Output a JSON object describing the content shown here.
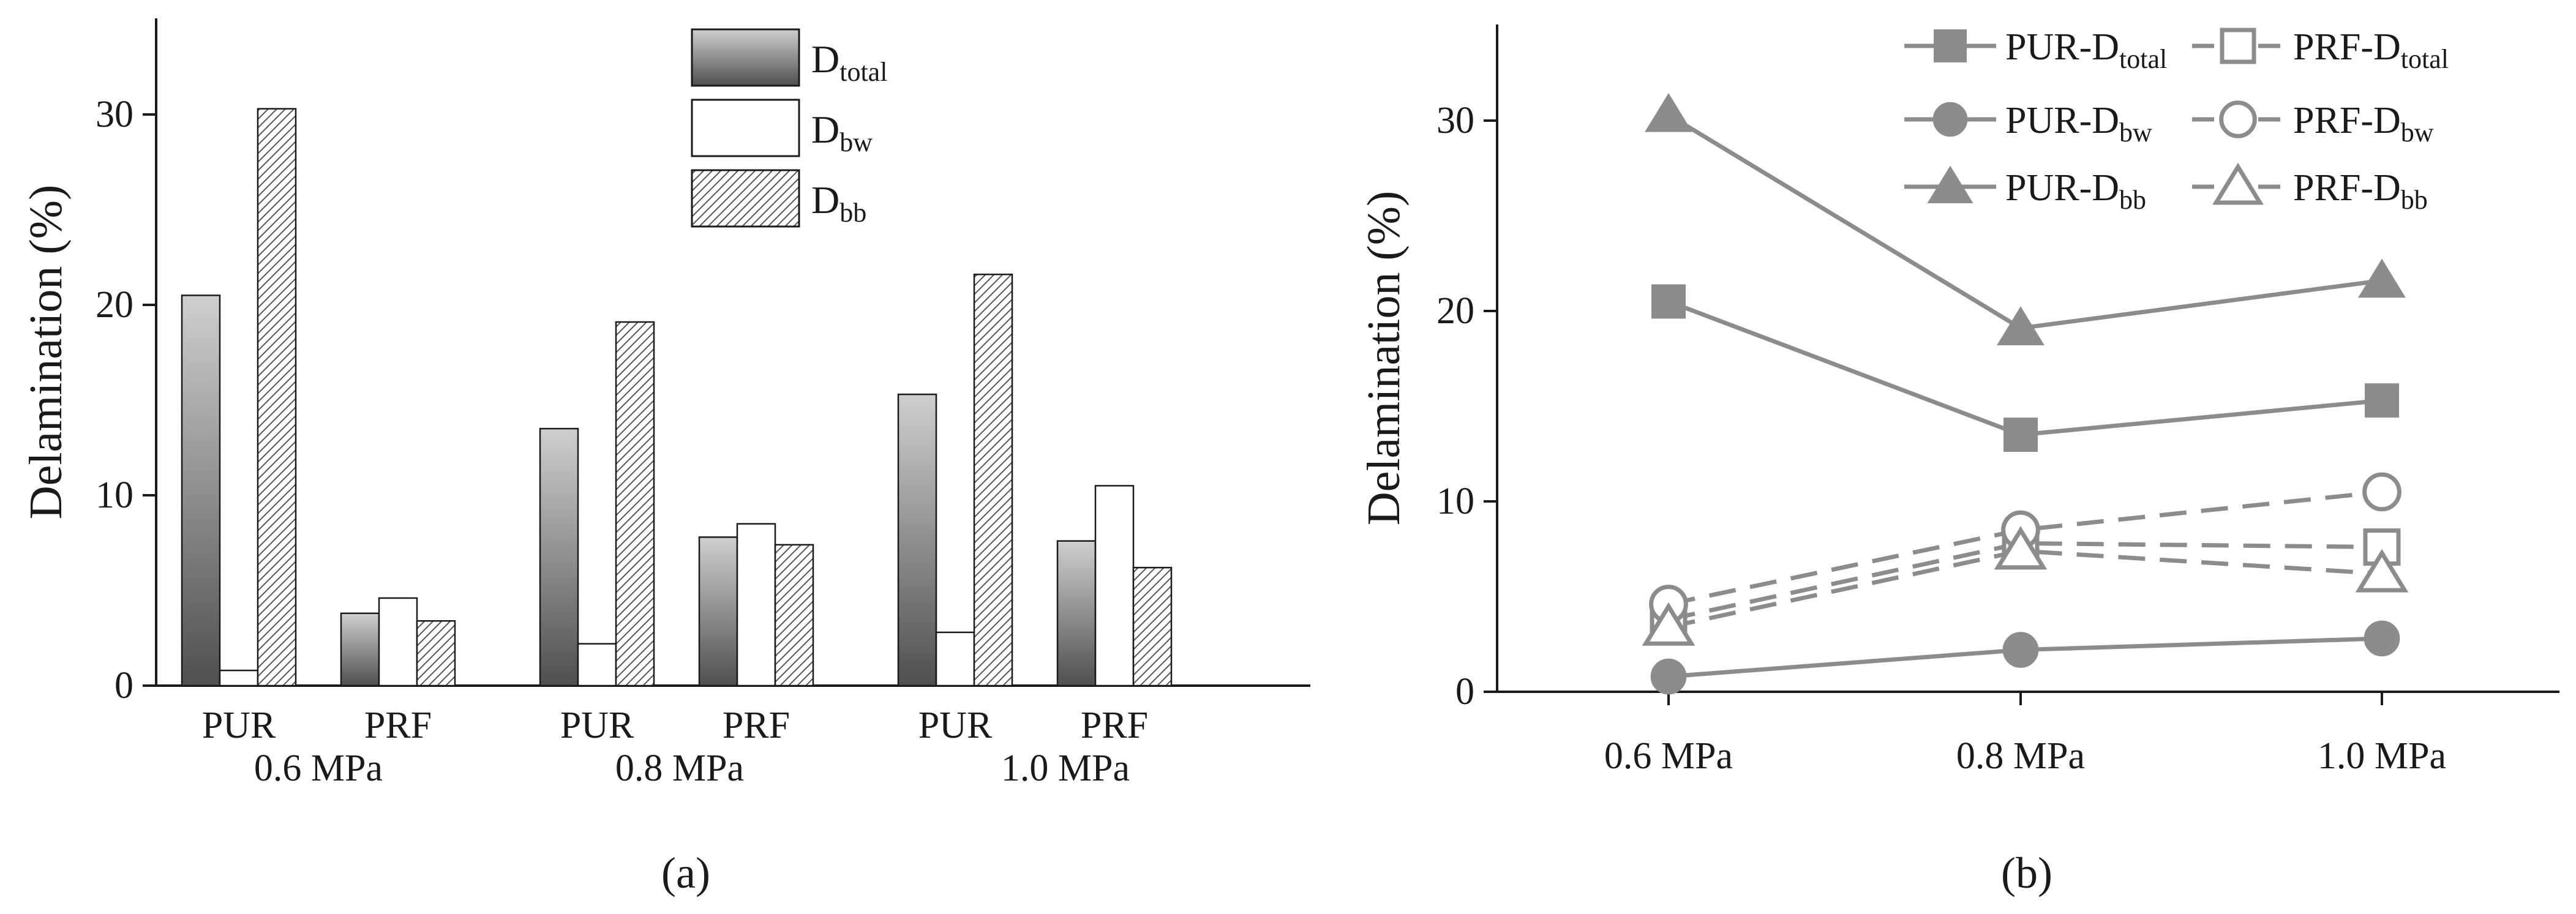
{
  "colors": {
    "axis": "#1a1a1a",
    "line": "#8c8c8c",
    "total_dark": "#4f4f4f",
    "total_light": "#cfcfcf",
    "bw_fill": "#ffffff",
    "bb_hatch": "#555555"
  },
  "chart_data": [
    {
      "type": "bar",
      "panel_label": "(a)",
      "ylabel": "Delamination (%)",
      "xlabel": "",
      "ylim": [
        0,
        35
      ],
      "yticks": [
        0,
        10,
        20,
        30
      ],
      "group_labels": [
        "0.6 MPa",
        "0.8 MPa",
        "1.0 MPa"
      ],
      "categories": [
        "PUR",
        "PRF",
        "PUR",
        "PRF",
        "PUR",
        "PRF"
      ],
      "legend_position": "top-right",
      "series": [
        {
          "name": "D",
          "sub": "total",
          "style": "gradient",
          "values": [
            20.5,
            3.8,
            13.5,
            7.8,
            15.3,
            7.6
          ]
        },
        {
          "name": "D",
          "sub": "bw",
          "style": "white",
          "values": [
            0.8,
            4.6,
            2.2,
            8.5,
            2.8,
            10.5
          ]
        },
        {
          "name": "D",
          "sub": "bb",
          "style": "hatched",
          "values": [
            30.3,
            3.4,
            19.1,
            7.4,
            21.6,
            6.2
          ]
        }
      ]
    },
    {
      "type": "line",
      "panel_label": "(b)",
      "ylabel": "Delamination (%)",
      "xlabel": "",
      "ylim": [
        0,
        35
      ],
      "yticks": [
        0,
        10,
        20,
        30
      ],
      "categories": [
        "0.6 MPa",
        "0.8 MPa",
        "1.0 MPa"
      ],
      "legend_position": "top-right",
      "series": [
        {
          "name": "PUR-D",
          "sub": "total",
          "marker": "square",
          "filled": true,
          "dashed": false,
          "values": [
            20.5,
            13.5,
            15.3
          ]
        },
        {
          "name": "PUR-D",
          "sub": "bw",
          "marker": "circle",
          "filled": true,
          "dashed": false,
          "values": [
            0.8,
            2.2,
            2.8
          ]
        },
        {
          "name": "PUR-D",
          "sub": "bb",
          "marker": "triangle",
          "filled": true,
          "dashed": false,
          "values": [
            30.3,
            19.1,
            21.6
          ]
        },
        {
          "name": "PRF-D",
          "sub": "total",
          "marker": "square",
          "filled": false,
          "dashed": true,
          "values": [
            3.8,
            7.8,
            7.6
          ]
        },
        {
          "name": "PRF-D",
          "sub": "bw",
          "marker": "circle",
          "filled": false,
          "dashed": true,
          "values": [
            4.6,
            8.5,
            10.5
          ]
        },
        {
          "name": "PRF-D",
          "sub": "bb",
          "marker": "triangle",
          "filled": false,
          "dashed": true,
          "values": [
            3.4,
            7.4,
            6.2
          ]
        }
      ]
    }
  ]
}
